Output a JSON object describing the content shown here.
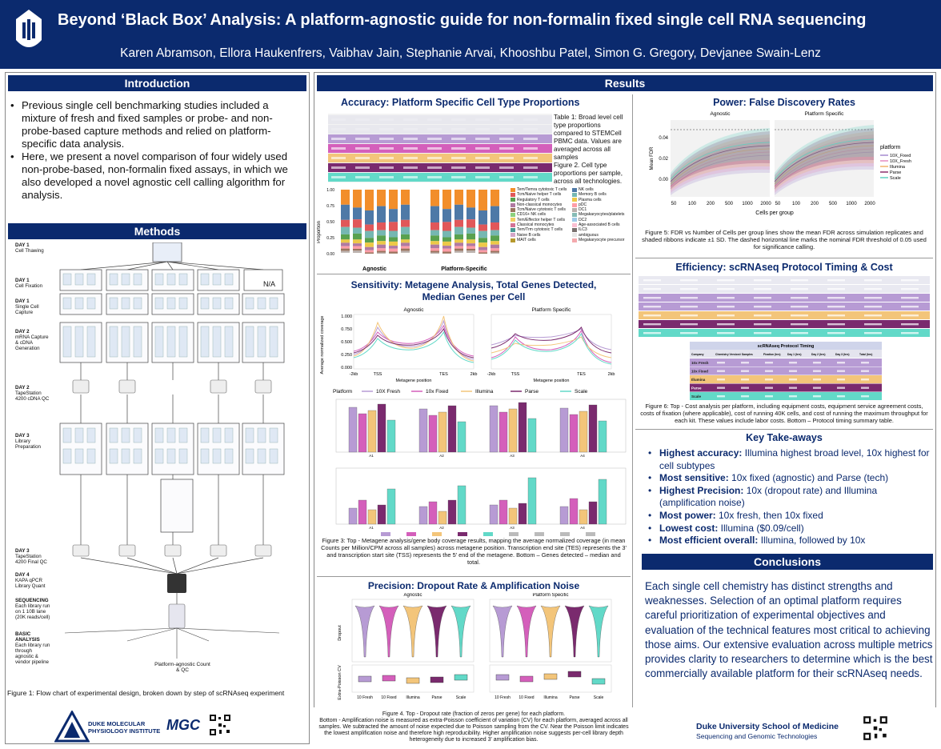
{
  "header": {
    "title": "Beyond ‘Black Box’ Analysis: A platform-agnostic guide for non-formalin fixed single cell RNA sequencing",
    "authors": "Karen Abramson, Ellora Haukenfrers, Vaibhav Jain, Stephanie Arvai, Khooshbu Patel, Simon G. Gregory, Devjanee Swain-Lenz"
  },
  "introduction": {
    "heading": "Introduction",
    "bullets": [
      "Previous single cell benchmarking studies included a mixture of fresh and fixed samples or probe- and non-probe-based capture methods and relied on platform-specific data analysis.",
      "Here, we present a novel comparison of four widely used non-probe-based, non-formalin fixed assays, in which we also developed a novel agnostic cell calling algorithm for analysis."
    ]
  },
  "methods": {
    "heading": "Methods",
    "days": [
      {
        "day": "DAY 1",
        "step": "Cell Thawing"
      },
      {
        "day": "DAY 1",
        "step": "Cell Fixation"
      },
      {
        "day": "DAY 1",
        "step": "Single Cell Capture"
      },
      {
        "day": "DAY 2",
        "step": "mRNA Capture & cDNA Generation"
      },
      {
        "day": "DAY 2",
        "step": "TapeStation 4200 cDNA QC"
      },
      {
        "day": "DAY 3",
        "step": "Library Preparation"
      },
      {
        "day": "DAY 3",
        "step": "TapeStation 4200 Final QC"
      },
      {
        "day": "DAY 4",
        "step": "KAPA qPCR Library Quant"
      },
      {
        "day": "SEQUENCING",
        "step": "Each library run on 1 10B lane (20K reads/cell)"
      },
      {
        "day": "BASIC ANALYSIS",
        "step": "Each library run through agnostic & vendor pipeline"
      }
    ],
    "na_label": "N/A",
    "final_label": "Platform-agnostic Count & QC",
    "caption": "Figure 1: Flow chart of experimental design, broken down by step of scRNAseq experiment"
  },
  "logos": {
    "duke_institute": "DUKE MOLECULAR PHYSIOLOGY INSTITUTE",
    "mgc": "MGC",
    "duke_som_1": "Duke University School of Medicine",
    "duke_som_2": "Sequencing and Genomic Technologies"
  },
  "results": {
    "heading": "Results",
    "accuracy": {
      "title": "Accuracy: Platform Specific Cell Type Proportions",
      "caption": "Table 1: Broad level cell type proportions compared to STEMCell PBMC data. Values are averaged across all samples\nFigure 2. Cell type proportions per sample, across all technologies.",
      "panels": [
        "Agnostic",
        "Platform-Specific"
      ],
      "ylabel": "Proportion",
      "legend": [
        "Tem/Temra cytotoxic T cells",
        "NK cells",
        "Tcm/Naive helper T cells",
        "Memory B cells",
        "Regulatory T cells",
        "Plasma cells",
        "Non-classical monocytes",
        "pDC",
        "Tcm/Naive cytotoxic T cells",
        "DC1",
        "CD16+ NK cells",
        "Megakaryocytes/platelets",
        "Tem/Effector helper T cells",
        "DC2",
        "Classical monocytes",
        "Age-associated B cells",
        "Tem/Trm cytotoxic T cells",
        "ILC3",
        "Naive B cells",
        "ambiguous",
        "MAIT cells",
        "Megakaryocyte precursor"
      ],
      "legend_colors": [
        "#f28e2b",
        "#4e79a7",
        "#e15759",
        "#76b7b2",
        "#59a14f",
        "#edc948",
        "#b07aa1",
        "#ff9da7",
        "#9c755f",
        "#bab0ac",
        "#8cd17d",
        "#86bcb6",
        "#f1ce63",
        "#a0cbe8",
        "#d37295",
        "#fabfd2",
        "#499894",
        "#79706e",
        "#d4a6c8",
        "#e6e6e6",
        "#b6992d",
        "#f4a9ad"
      ]
    },
    "sensitivity": {
      "title_line1": "Sensitivity: Metagene Analysis, Total Genes Detected,",
      "title_line2": "Median Genes per Cell",
      "panels": [
        "Agnostic",
        "Platform Specific"
      ],
      "ylabel": "Average normalized coverage",
      "xlabel": "Metagene position",
      "yticks": [
        "1.000",
        "0.750",
        "0.500",
        "0.250",
        "0.000"
      ],
      "xticks": [
        "-2kb",
        "TSS",
        "TES",
        "2kb"
      ],
      "legend_title": "Platform",
      "platforms": [
        "10X Fresh",
        "10x Fixed",
        "Illumina",
        "Parse",
        "Scale"
      ],
      "platform_colors": [
        "#b79bd4",
        "#d45fbb",
        "#f3c57a",
        "#7a2a6e",
        "#62d9c8"
      ],
      "caption": "Figure 3: Top - Metagene analysis/gene body coverage results, mapping the average normalized coverage (in mean Counts per Million/CPM across all samples) across metagene position. Transcription end site (TES) represents the 3' and transcription start site (TSS) represents the 5' end of the metagene. Bottom – Genes detected – median and total."
    },
    "precision": {
      "title": "Precision: Dropout Rate & Amplification Noise",
      "panels": [
        "Agnostic",
        "Platform Specific"
      ],
      "ylabel_top": "Dropout",
      "ylabel_bottom": "Extra-Poisson CV",
      "xlabels": [
        "10 Fresh",
        "10 Fixed",
        "Illumina",
        "Parse",
        "Scale"
      ],
      "caption_1": "Figure 4. Top - Dropout rate (fraction of zeros per gene) for each platform.",
      "caption_2": "Bottom - Amplification noise is measured as extra-Poisson coefficient of variation (CV) for each platform, averaged across all samples. We subtracted the amount of noise expected due to Poisson sampling from the CV. Near the Poisson limit indicates the lowest amplification noise and therefore high reproducibility. Higher amplification noise suggests per-cell library depth heterogeneity due to increased 3' amplification bias."
    },
    "power": {
      "title": "Power: False Discovery Rates",
      "panels": [
        "Agnostic",
        "Platform Specific"
      ],
      "ylabel": "Mean FDR",
      "xlabel": "Cells per group",
      "xticks": [
        "50",
        "100",
        "200",
        "500",
        "1000",
        "2000"
      ],
      "yticks": [
        "0.04",
        "0.02",
        "0.00"
      ],
      "legend_title": "platform",
      "legend": [
        "10X_Fixed",
        "10X_Fresh",
        "Illumina",
        "Parse",
        "Scale"
      ],
      "colors": [
        "#a58bd0",
        "#e48bc0",
        "#f2b36b",
        "#8a2f6b",
        "#5fd0c0"
      ],
      "caption": "Figure 5: FDR vs Number of Cells per group lines show the mean FDR across simulation replicates and shaded ribbons indicate ±1 SD. The dashed horizontal line marks the nominal FDR threshold of 0.05 used for significance calling."
    },
    "efficiency": {
      "title": "Efficiency: scRNAseq Protocol Timing & Cost",
      "timing_title": "scRNAseq Protocol Timing",
      "timing_headers": [
        "Company",
        "Chemistry Version",
        "# Samples",
        "Fixation (hrs)",
        "Day 1 (hrs)",
        "Day 2 (hrs)",
        "Day 3 (hrs)",
        "Total (hrs)"
      ],
      "timing_rows": [
        "10x Fresh",
        "10x Fixed",
        "Illumina",
        "Parse",
        "Scale"
      ],
      "caption": "Figure 6: Top - Cost analysis per platform, including equipment costs, equipment service agreement costs, costs of fixation (where applicable), cost of running 40K cells, and cost of running the maximum throughput for each kit. These values include labor costs. Bottom – Protocol timing summary table."
    },
    "takeaways": {
      "title": "Key Take-aways",
      "items": [
        {
          "b": "Highest accuracy:",
          "t": " Illumina highest broad level, 10x highest for cell subtypes"
        },
        {
          "b": "Most sensitive:",
          "t": " 10x fixed (agnostic) and Parse (tech)"
        },
        {
          "b": "Highest Precision:",
          "t": " 10x (dropout rate) and Illumina (amplification noise)"
        },
        {
          "b": "Most power:",
          "t": " 10x fresh, then 10x fixed"
        },
        {
          "b": "Lowest cost:",
          "t": " Illumina ($0.09/cell)"
        },
        {
          "b": "Most efficient overall:",
          "t": " Illumina, followed by 10x"
        }
      ]
    },
    "conclusions": {
      "heading": "Conclusions",
      "text": "Each single cell chemistry has distinct strengths and weaknesses. Selection of an optimal platform requires careful prioritization of experimental objectives and evaluation of the technical features most critical to achieving those aims. Our extensive evaluation across multiple metrics provides clarity to researchers to determine which is the best commercially available platform for their scRNAseq needs."
    }
  }
}
